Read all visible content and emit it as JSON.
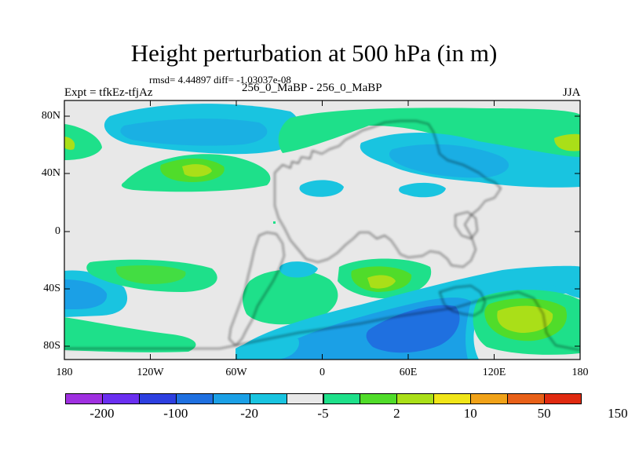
{
  "header": {
    "title": "Height perturbation at 500 hPa (in m)",
    "stats": "rmsd= 4.44897 diff= -1.03037e-08",
    "left_label": "Expt = tfkEz-tfjAz",
    "center_label": "256_0_MaBP - 256_0_MaBP",
    "right_label": "JJA"
  },
  "axes": {
    "y_ticks": [
      "80N",
      "40N",
      "0",
      "40S",
      "80S"
    ],
    "x_ticks": [
      "180",
      "120W",
      "60W",
      "0",
      "60E",
      "120E",
      "180"
    ]
  },
  "colorbar": {
    "colors": [
      "#9f30e0",
      "#6a2ff0",
      "#2d3fe0",
      "#1f70e0",
      "#1ba0e6",
      "#19c4e0",
      "#e8e8e8",
      "#1ee08a",
      "#50dc2a",
      "#aadf18",
      "#f0e518",
      "#f0a218",
      "#e86018",
      "#e02a10"
    ],
    "labels": [
      "-200",
      "-100",
      "-20",
      "-5",
      "2",
      "10",
      "50",
      "150"
    ]
  },
  "chart_data": {
    "type": "heatmap",
    "title": "Height perturbation at 500 hPa (in m)",
    "variable": "500 hPa height perturbation",
    "units": "m",
    "xlim": [
      -180,
      180
    ],
    "ylim": [
      -90,
      90
    ],
    "levels": [
      -200,
      -100,
      -20,
      -5,
      2,
      10,
      50,
      150
    ],
    "features": [
      {
        "region": "North Pacific 45-75N, 150W-90W",
        "sign": "negative",
        "range": "-20 to -5"
      },
      {
        "region": "Arctic band 65-80N, 30W-30E",
        "sign": "positive",
        "range": "2 to 10"
      },
      {
        "region": "Central Asia 40-70N, 30E-100E",
        "sign": "negative",
        "range": "-20 to -5"
      },
      {
        "region": "Southern Ocean 40-80S, 30E-110E",
        "sign": "negative",
        "range": "-100 to -20"
      },
      {
        "region": "South Pacific 50-80S, 120E-180E",
        "sign": "positive",
        "range": "10 to 50"
      },
      {
        "region": "South Atlantic 40-60S, 0-60E",
        "sign": "positive",
        "range": "10 to 50"
      }
    ]
  }
}
